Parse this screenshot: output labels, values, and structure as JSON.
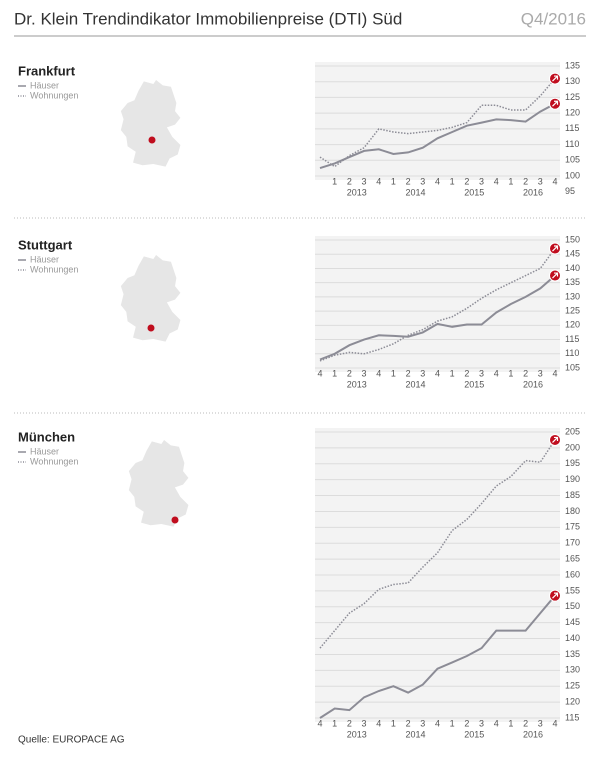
{
  "title": "Dr. Klein Trendindikator Immobilienpreise (DTI) Süd",
  "period": "Q4/2016",
  "source": "Quelle: EUROPACE AG",
  "chart_data": [
    {
      "type": "line",
      "title": "Frankfurt",
      "categories": [
        null,
        "1",
        "2",
        "3",
        "4",
        "1",
        "2",
        "3",
        "4",
        "1",
        "2",
        "3",
        "4",
        "1",
        "2",
        "3",
        "4"
      ],
      "years": [
        "2013",
        "2014",
        "2015",
        "2016"
      ],
      "ylim": [
        100,
        135
      ],
      "yticks": [
        95,
        100,
        105,
        110,
        115,
        120,
        125,
        130,
        135
      ],
      "grid": true,
      "series": [
        {
          "name": "Häuser",
          "color": "#8c8c96",
          "style": "solid",
          "values": [
            102.5,
            104,
            106,
            108,
            108.5,
            107,
            107.5,
            109,
            112,
            114,
            116,
            117,
            118,
            117.8,
            117.3,
            120.5,
            123
          ]
        },
        {
          "name": "Wohnungen",
          "color": "#8c8c96",
          "style": "dotted",
          "values": [
            106,
            103,
            106.5,
            109,
            115,
            114,
            113.5,
            114,
            114.5,
            115.5,
            117,
            122.5,
            122.5,
            121,
            121,
            125.5,
            131
          ]
        }
      ]
    },
    {
      "type": "line",
      "title": "Stuttgart",
      "categories": [
        "4",
        "1",
        "2",
        "3",
        "4",
        "1",
        "2",
        "3",
        "4",
        "1",
        "2",
        "3",
        "4",
        "1",
        "2",
        "3",
        "4"
      ],
      "years": [
        "2013",
        "2014",
        "2015",
        "2016"
      ],
      "ylim": [
        105,
        150
      ],
      "yticks": [
        105,
        110,
        115,
        120,
        125,
        130,
        135,
        140,
        145,
        150
      ],
      "grid": true,
      "series": [
        {
          "name": "Häuser",
          "color": "#8c8c96",
          "style": "solid",
          "values": [
            108,
            110,
            113,
            115,
            116.5,
            116.3,
            116,
            117.5,
            120.5,
            119.5,
            120.3,
            120.3,
            124.5,
            127.5,
            130,
            133,
            137.5
          ]
        },
        {
          "name": "Wohnungen",
          "color": "#8c8c96",
          "style": "dotted",
          "values": [
            107.5,
            109.5,
            110.5,
            110,
            111.5,
            113.5,
            116.5,
            118.5,
            121.5,
            123,
            126,
            129.5,
            132.5,
            135,
            137.5,
            140,
            147
          ]
        }
      ]
    },
    {
      "type": "line",
      "title": "München",
      "categories": [
        "4",
        "1",
        "2",
        "3",
        "4",
        "1",
        "2",
        "3",
        "4",
        "1",
        "2",
        "3",
        "4",
        "1",
        "2",
        "3",
        "4"
      ],
      "years": [
        "2013",
        "2014",
        "2015",
        "2016"
      ],
      "ylim": [
        115,
        205
      ],
      "yticks": [
        115,
        120,
        125,
        130,
        135,
        140,
        145,
        150,
        155,
        160,
        165,
        170,
        175,
        180,
        185,
        190,
        195,
        200,
        205
      ],
      "grid": true,
      "series": [
        {
          "name": "Häuser",
          "color": "#8c8c96",
          "style": "solid",
          "values": [
            115,
            118,
            117.5,
            121.5,
            123.5,
            125,
            123,
            125.5,
            130.5,
            132.5,
            134.5,
            137,
            142.5,
            142.5,
            142.5,
            148,
            153.5
          ]
        },
        {
          "name": "Wohnungen",
          "color": "#8c8c96",
          "style": "dotted",
          "values": [
            137,
            142.5,
            148,
            151,
            155.5,
            157,
            157.5,
            162.5,
            167,
            174,
            177.5,
            182.5,
            188,
            191,
            196,
            195.5,
            202.5
          ]
        }
      ]
    }
  ]
}
